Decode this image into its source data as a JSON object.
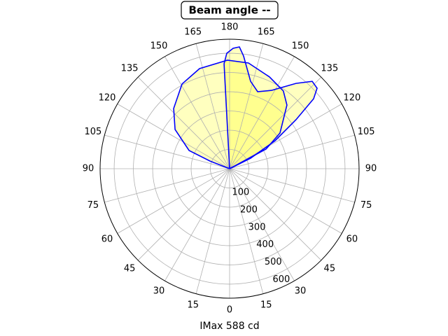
{
  "chart_data": {
    "type": "polar",
    "title": "Beam angle --",
    "xlabel": "IMax 588 cd",
    "theta_zero": "bottom",
    "theta_direction": "clockwise",
    "xticks": [
      0,
      15,
      30,
      45,
      60,
      75,
      90,
      105,
      120,
      135,
      150,
      165,
      180,
      {
        "value": 195,
        "label": "165"
      },
      {
        "value": 210,
        "label": "150"
      },
      {
        "value": 225,
        "label": "135"
      },
      {
        "value": 240,
        "label": "120"
      },
      {
        "value": 255,
        "label": "105"
      },
      {
        "value": 270,
        "label": "90"
      },
      {
        "value": 285,
        "label": "75"
      },
      {
        "value": 300,
        "label": "60"
      },
      {
        "value": 315,
        "label": "45"
      },
      {
        "value": 330,
        "label": "30"
      },
      {
        "value": 345,
        "label": "15"
      }
    ],
    "ylim": [
      0,
      673
    ],
    "yticks": [
      100,
      200,
      300,
      400,
      500,
      600
    ],
    "grid": true,
    "series": [
      {
        "color": "#0000ff",
        "fill": "#ffff00",
        "fill_alpha": 0.25,
        "theta": [
          110,
          111.4,
          114.2,
          125.7,
          137.1,
          150.7,
          163.3,
          178.9,
          190.1,
          203.5,
          214.7,
          222,
          234.7,
          241.7,
          250
        ],
        "values": [
          0,
          109,
          231,
          349,
          427,
          505,
          543,
          564,
          558,
          520,
          491,
          445,
          321,
          215,
          0
        ]
      },
      {
        "color": "#0000ff",
        "fill": "#ffff00",
        "fill_alpha": 0.25,
        "theta": [
          176,
          177,
          178.6,
          181.7,
          184.6,
          187.1,
          193.5,
          200,
          208.2,
          217.9,
          223.4,
          227.4,
          230.2,
          233.6,
          238.4,
          243.4,
          250
        ],
        "values": [
          0,
          546,
          600,
          626,
          635,
          590,
          467,
          426,
          462,
          562,
          625,
          618,
          568,
          429,
          277,
          122,
          0
        ]
      }
    ]
  }
}
